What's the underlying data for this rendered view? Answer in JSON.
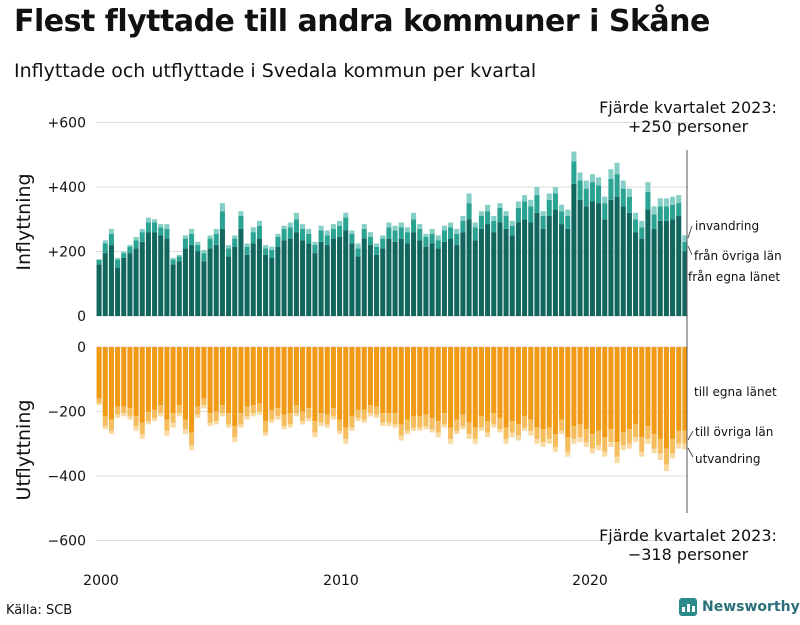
{
  "title": "Flest flyttade till andra kommuner i Skåne",
  "subtitle": "Inflyttade och utflyttade i Svedala kommun per kvartal",
  "source": "Källa: SCB",
  "brand": "Newsworthy",
  "colors": {
    "in_own_county": "#11665e",
    "in_other_counties": "#2aa393",
    "in_immigration": "#86cfc6",
    "out_own_county": "#f09a16",
    "out_other_counties": "#f5bd5e",
    "out_emigration": "#fadaa3",
    "grid": "#dcdcdc"
  },
  "chart_data": {
    "type": "bar",
    "stacked": true,
    "x_start": "2000 Q1",
    "x_end": "2023 Q4",
    "x_ticks": [
      "2000",
      "2010",
      "2020"
    ],
    "y_ticks": [
      "+600",
      "+400",
      "+200",
      "0",
      "−200",
      "−400",
      "−600"
    ],
    "ylim": [
      -600,
      600
    ],
    "top_panel": {
      "ylabel": "Inflyttning",
      "totals": [
        175,
        235,
        270,
        180,
        200,
        220,
        245,
        270,
        305,
        300,
        285,
        285,
        180,
        190,
        250,
        270,
        230,
        205,
        250,
        270,
        350,
        220,
        250,
        325,
        225,
        275,
        295,
        220,
        215,
        255,
        280,
        290,
        320,
        285,
        270,
        230,
        280,
        265,
        285,
        295,
        320,
        265,
        225,
        285,
        260,
        225,
        250,
        290,
        280,
        290,
        275,
        320,
        285,
        255,
        270,
        250,
        280,
        290,
        270,
        310,
        380,
        290,
        325,
        345,
        310,
        350,
        325,
        295,
        355,
        375,
        360,
        400,
        325,
        380,
        400,
        345,
        330,
        510,
        445,
        420,
        440,
        430,
        370,
        455,
        475,
        420,
        395,
        320,
        295,
        415,
        340,
        365,
        365,
        370,
        375,
        250
      ],
      "series": [
        {
          "name": "från egna länet",
          "values": [
            160,
            195,
            220,
            150,
            180,
            195,
            210,
            230,
            260,
            260,
            250,
            240,
            160,
            170,
            210,
            220,
            200,
            170,
            210,
            220,
            270,
            185,
            215,
            270,
            190,
            225,
            240,
            190,
            180,
            215,
            235,
            240,
            260,
            235,
            225,
            195,
            230,
            220,
            240,
            245,
            265,
            225,
            185,
            240,
            220,
            190,
            210,
            240,
            230,
            240,
            225,
            260,
            235,
            215,
            225,
            210,
            230,
            240,
            220,
            260,
            300,
            235,
            270,
            285,
            260,
            290,
            270,
            250,
            290,
            300,
            290,
            320,
            270,
            310,
            330,
            285,
            270,
            410,
            360,
            340,
            355,
            350,
            300,
            360,
            370,
            340,
            320,
            260,
            240,
            330,
            270,
            295,
            295,
            300,
            310,
            200
          ]
        },
        {
          "name": "från övriga län",
          "values": [
            15,
            30,
            35,
            25,
            15,
            20,
            25,
            30,
            30,
            30,
            25,
            30,
            15,
            15,
            30,
            35,
            20,
            25,
            30,
            35,
            55,
            25,
            25,
            40,
            25,
            35,
            40,
            20,
            25,
            30,
            35,
            35,
            40,
            35,
            30,
            25,
            35,
            30,
            30,
            35,
            40,
            30,
            25,
            30,
            25,
            25,
            30,
            35,
            35,
            35,
            35,
            40,
            35,
            30,
            30,
            25,
            35,
            35,
            35,
            35,
            50,
            40,
            40,
            40,
            35,
            45,
            40,
            30,
            45,
            55,
            50,
            55,
            40,
            50,
            50,
            40,
            40,
            70,
            60,
            55,
            60,
            55,
            50,
            65,
            70,
            55,
            50,
            40,
            35,
            55,
            45,
            45,
            45,
            45,
            40,
            30
          ]
        },
        {
          "name": "invandring",
          "values": [
            0,
            10,
            15,
            5,
            5,
            5,
            10,
            10,
            15,
            10,
            10,
            15,
            5,
            5,
            10,
            15,
            10,
            10,
            10,
            15,
            25,
            10,
            10,
            15,
            10,
            15,
            15,
            10,
            10,
            10,
            10,
            15,
            20,
            15,
            15,
            10,
            15,
            15,
            15,
            15,
            15,
            10,
            15,
            15,
            15,
            10,
            10,
            15,
            15,
            15,
            15,
            20,
            15,
            10,
            15,
            15,
            15,
            15,
            15,
            15,
            30,
            15,
            15,
            20,
            15,
            15,
            15,
            15,
            20,
            20,
            20,
            25,
            15,
            20,
            20,
            20,
            20,
            30,
            25,
            25,
            25,
            25,
            20,
            30,
            35,
            25,
            25,
            20,
            20,
            30,
            25,
            25,
            25,
            25,
            25,
            20
          ]
        }
      ],
      "annotation": "Fjärde kvartalet 2023:\n+250 personer"
    },
    "bottom_panel": {
      "ylabel": "Utflyttning",
      "totals": [
        180,
        255,
        270,
        220,
        215,
        225,
        260,
        285,
        240,
        230,
        215,
        275,
        250,
        215,
        270,
        320,
        220,
        190,
        245,
        240,
        215,
        250,
        295,
        250,
        225,
        215,
        210,
        275,
        235,
        225,
        255,
        250,
        215,
        240,
        230,
        280,
        245,
        250,
        225,
        270,
        300,
        260,
        230,
        235,
        215,
        220,
        245,
        245,
        250,
        290,
        270,
        260,
        260,
        255,
        265,
        280,
        250,
        300,
        270,
        255,
        285,
        300,
        260,
        280,
        250,
        265,
        300,
        280,
        290,
        260,
        275,
        300,
        310,
        300,
        325,
        270,
        340,
        300,
        295,
        310,
        330,
        320,
        340,
        310,
        360,
        320,
        315,
        295,
        340,
        300,
        330,
        350,
        385,
        345,
        315,
        318
      ],
      "series": [
        {
          "name": "till egna länet",
          "values": [
            160,
            215,
            225,
            185,
            185,
            190,
            215,
            235,
            200,
            195,
            180,
            225,
            205,
            180,
            225,
            265,
            185,
            160,
            205,
            200,
            180,
            205,
            245,
            205,
            185,
            180,
            175,
            230,
            195,
            190,
            210,
            205,
            180,
            200,
            190,
            230,
            205,
            210,
            190,
            225,
            250,
            215,
            195,
            195,
            180,
            185,
            205,
            205,
            205,
            240,
            225,
            215,
            215,
            210,
            220,
            230,
            205,
            250,
            225,
            210,
            235,
            250,
            215,
            230,
            205,
            220,
            250,
            230,
            240,
            215,
            225,
            250,
            255,
            250,
            270,
            225,
            280,
            245,
            240,
            255,
            270,
            260,
            280,
            255,
            295,
            265,
            255,
            240,
            280,
            245,
            270,
            285,
            315,
            285,
            260,
            260
          ]
        },
        {
          "name": "till övriga län",
          "values": [
            15,
            30,
            35,
            25,
            20,
            25,
            30,
            35,
            30,
            25,
            25,
            35,
            30,
            25,
            30,
            40,
            25,
            20,
            30,
            30,
            25,
            35,
            35,
            35,
            30,
            25,
            25,
            35,
            30,
            25,
            35,
            35,
            25,
            30,
            30,
            35,
            30,
            30,
            25,
            35,
            35,
            35,
            25,
            30,
            25,
            25,
            30,
            30,
            35,
            35,
            35,
            35,
            35,
            35,
            35,
            35,
            35,
            35,
            35,
            35,
            35,
            35,
            35,
            35,
            35,
            35,
            35,
            35,
            35,
            35,
            35,
            35,
            40,
            35,
            40,
            35,
            45,
            40,
            40,
            40,
            45,
            45,
            45,
            40,
            45,
            40,
            45,
            40,
            45,
            40,
            45,
            45,
            50,
            45,
            40,
            40
          ]
        },
        {
          "name": "utvandring",
          "values": [
            5,
            10,
            10,
            10,
            10,
            10,
            15,
            15,
            10,
            10,
            10,
            15,
            15,
            10,
            15,
            15,
            10,
            10,
            10,
            10,
            10,
            10,
            15,
            10,
            10,
            10,
            10,
            10,
            10,
            10,
            10,
            10,
            10,
            10,
            10,
            15,
            10,
            10,
            10,
            10,
            15,
            10,
            10,
            10,
            10,
            10,
            10,
            10,
            10,
            15,
            10,
            10,
            10,
            10,
            10,
            15,
            10,
            15,
            10,
            10,
            15,
            15,
            10,
            15,
            10,
            10,
            15,
            15,
            15,
            10,
            15,
            15,
            15,
            15,
            15,
            10,
            15,
            15,
            15,
            15,
            15,
            15,
            15,
            15,
            20,
            15,
            15,
            15,
            15,
            15,
            15,
            20,
            20,
            15,
            15,
            18
          ]
        }
      ],
      "annotation": "Fjärde kvartalet 2023:\n−318 personer"
    }
  }
}
